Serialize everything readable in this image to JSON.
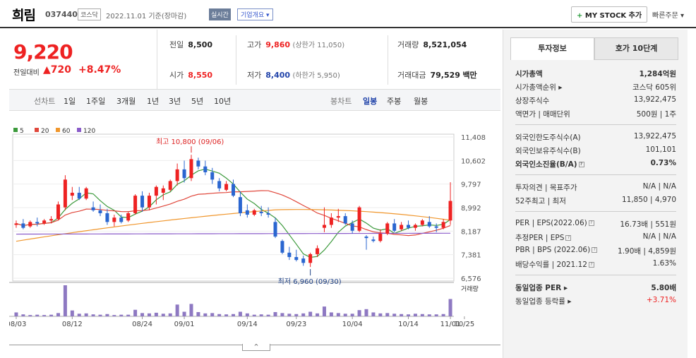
{
  "header": {
    "name": "희림",
    "code": "037440",
    "market": "코스닥",
    "date": "2022.11.01 기준(장마감)",
    "realtime": "실시간",
    "overview": "기업개요 ▾",
    "mystock_plus": "+",
    "mystock": "MY STOCK 추가",
    "quick": "빠른주문 ▾"
  },
  "price": {
    "current": "9,220",
    "change_label": "전일대비",
    "change": "▲720",
    "pct": "+8.47%"
  },
  "stats": {
    "prev_k": "전일",
    "prev_v": "8,500",
    "open_k": "시가",
    "open_v": "8,550",
    "high_k": "고가",
    "high_v": "9,860",
    "high_limit": "(상한가 11,050)",
    "low_k": "저가",
    "low_v": "8,400",
    "low_limit": "(하한가 5,950)",
    "vol_k": "거래량",
    "vol_v": "8,521,054",
    "amt_k": "거래대금",
    "amt_v": "79,529",
    "amt_unit": "백만"
  },
  "periods": {
    "line_label": "선차트",
    "items": [
      "1일",
      "1주일",
      "3개월",
      "1년",
      "3년",
      "5년",
      "10년"
    ],
    "candle_label": "봉차트",
    "daily": "일봉",
    "weekly": "주봉",
    "monthly": "월봉"
  },
  "chart_data": {
    "type": "candlestick",
    "ma_legend": [
      "5",
      "20",
      "60",
      "120"
    ],
    "ma_colors": [
      "#3c9a3c",
      "#e0473b",
      "#f0962c",
      "#8a5bc9"
    ],
    "yticks": [
      "11,408",
      "10,602",
      "9,797",
      "8,992",
      "8,187",
      "7,381",
      "6,576"
    ],
    "ylim": [
      6576,
      11408
    ],
    "xticks": [
      "08/03",
      "08/12",
      "08/24",
      "09/01",
      "09/14",
      "09/23",
      "10/04",
      "10/14",
      "10/25",
      "11/01"
    ],
    "max_label": "최고 10,800 (09/06)",
    "min_label": "최저 6,960 (09/30)",
    "volume_label": "거래량",
    "candles": [
      [
        8400,
        8550,
        8300,
        8450
      ],
      [
        8450,
        8600,
        8250,
        8300
      ],
      [
        8350,
        8550,
        8300,
        8500
      ],
      [
        8500,
        8650,
        8350,
        8450
      ],
      [
        8450,
        8600,
        8400,
        8550
      ],
      [
        8550,
        8700,
        8450,
        8600
      ],
      [
        8600,
        9200,
        8550,
        9100
      ],
      [
        9000,
        10100,
        8900,
        9950
      ],
      [
        9400,
        9700,
        9250,
        9500
      ],
      [
        9500,
        9700,
        9250,
        9300
      ],
      [
        9300,
        9700,
        9250,
        9650
      ],
      [
        9000,
        9200,
        8850,
        8900
      ],
      [
        8900,
        9100,
        8700,
        8800
      ],
      [
        8800,
        8950,
        8400,
        8500
      ],
      [
        8500,
        8750,
        8350,
        8650
      ],
      [
        8650,
        8750,
        8450,
        8500
      ],
      [
        8550,
        8850,
        8500,
        8800
      ],
      [
        8800,
        9450,
        8750,
        9400
      ],
      [
        9400,
        9550,
        8850,
        9000
      ],
      [
        9000,
        9500,
        8900,
        9400
      ],
      [
        9400,
        9750,
        9100,
        9700
      ],
      [
        9500,
        9750,
        9250,
        9650
      ],
      [
        9600,
        9950,
        9550,
        9900
      ],
      [
        9900,
        10500,
        9750,
        10300
      ],
      [
        10300,
        10600,
        9850,
        10000
      ],
      [
        10000,
        10800,
        9900,
        10650
      ],
      [
        10600,
        10700,
        10300,
        10400
      ],
      [
        10400,
        10600,
        10100,
        10200
      ],
      [
        10200,
        10350,
        9800,
        9950
      ],
      [
        9900,
        10000,
        9550,
        9650
      ],
      [
        9600,
        9900,
        9550,
        9800
      ],
      [
        9800,
        9950,
        9350,
        9400
      ],
      [
        9350,
        9550,
        8700,
        8800
      ],
      [
        8900,
        9100,
        8650,
        8750
      ],
      [
        8750,
        8950,
        8700,
        8900
      ],
      [
        8850,
        9050,
        8700,
        8800
      ],
      [
        8800,
        9000,
        8650,
        8750
      ],
      [
        8500,
        8650,
        7950,
        8000
      ],
      [
        7850,
        7900,
        7400,
        7450
      ],
      [
        7450,
        7650,
        7200,
        7300
      ],
      [
        7300,
        7550,
        7150,
        7200
      ],
      [
        7250,
        7350,
        7000,
        7100
      ],
      [
        7100,
        7450,
        6960,
        7400
      ],
      [
        7400,
        7700,
        7300,
        7600
      ],
      [
        8300,
        9000,
        8150,
        8400
      ],
      [
        8400,
        8800,
        8300,
        8650
      ],
      [
        8650,
        8950,
        8500,
        8700
      ],
      [
        8700,
        8800,
        8400,
        8450
      ],
      [
        8450,
        8550,
        8100,
        8200
      ],
      [
        8200,
        9050,
        8150,
        9000
      ],
      [
        8000,
        8050,
        7550,
        7950
      ],
      [
        7900,
        8000,
        7800,
        7850
      ],
      [
        7850,
        8250,
        7800,
        8100
      ],
      [
        8100,
        8500,
        8050,
        8450
      ],
      [
        8450,
        8600,
        8150,
        8200
      ],
      [
        8250,
        8500,
        8200,
        8400
      ],
      [
        8400,
        8550,
        8250,
        8300
      ],
      [
        8300,
        8450,
        8200,
        8400
      ],
      [
        8400,
        8600,
        8350,
        8550
      ],
      [
        8500,
        8700,
        8300,
        8350
      ],
      [
        8350,
        8450,
        8150,
        8300
      ],
      [
        8300,
        8600,
        8250,
        8500
      ],
      [
        8550,
        9860,
        8400,
        9220
      ]
    ],
    "volumes": [
      1.2,
      0.6,
      0.4,
      0.5,
      0.4,
      0.5,
      1.0,
      9.5,
      1.8,
      0.8,
      0.9,
      0.6,
      0.5,
      0.7,
      0.4,
      0.5,
      0.5,
      2.0,
      1.0,
      0.9,
      1.1,
      0.8,
      0.9,
      3.6,
      1.4,
      3.8,
      1.3,
      0.9,
      1.0,
      0.7,
      0.6,
      0.7,
      1.4,
      0.9,
      0.5,
      0.6,
      0.5,
      1.3,
      1.0,
      0.8,
      0.7,
      0.9,
      1.4,
      0.9,
      3.0,
      1.2,
      1.0,
      0.8,
      0.8,
      1.9,
      2.2,
      1.2,
      0.9,
      1.0,
      0.8,
      0.7,
      0.6,
      0.8,
      0.7,
      0.6,
      0.6,
      0.7,
      5.3
    ]
  },
  "side": {
    "tab1": "투자정보",
    "tab2": "호가 10단계",
    "cap_k": "시가총액",
    "cap_v": "1,284억원",
    "rank_k": "시가총액순위 ▸",
    "rank_v": "코스닥 605위",
    "shares_k": "상장주식수",
    "shares_v": "13,922,475",
    "par_k": "액면가 | 매매단위",
    "par_v": "500원 | 1주",
    "flim_k": "외국인한도주식수(A)",
    "flim_v": "13,922,475",
    "fhold_k": "외국인보유주식수(B)",
    "fhold_v": "101,101",
    "frate_k": "외국인소진율(B/A)",
    "frate_v": "0.73%",
    "op_k": "투자의견 | 목표주가",
    "op_v": "N/A | N/A",
    "w52_k": "52주최고 | 최저",
    "w52_v": "11,850 | 4,970",
    "per_k": "PER | EPS(2022.06)",
    "per_v": "16.73배 | 551원",
    "eper_k": "추정PER | EPS",
    "eper_v": "N/A | N/A",
    "pbr_k": "PBR | BPS (2022.06)",
    "pbr_v": "1.90배 | 4,859원",
    "div_k": "배당수익률 | 2021.12",
    "div_v": "1.63%",
    "ind_per_k": "동일업종 PER ▸",
    "ind_per_v": "5.80배",
    "ind_rate_k": "동일업종 등락률 ▸",
    "ind_rate_v": "+3.71%"
  },
  "footer": {
    "toggle": "^"
  }
}
